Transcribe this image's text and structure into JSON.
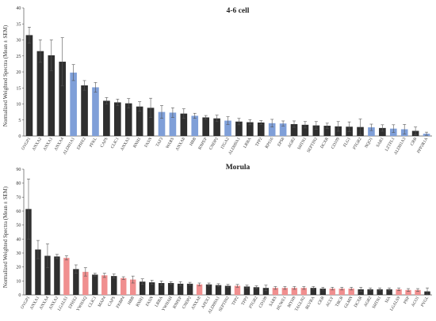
{
  "chart_data": [
    {
      "type": "bar",
      "title": "4-6 cell",
      "ylabel": "Normalized Weighted Spectra (Mean ± SEM)",
      "xlabel": "",
      "ylim": [
        0,
        40
      ],
      "yticks": [
        0,
        5,
        10,
        15,
        20,
        25,
        30,
        35,
        40
      ],
      "grid": false,
      "colors": {
        "dark": "#2f2f2f",
        "highlight": "#7f9fd8"
      },
      "categories": [
        "OVGP1",
        "ANXA2",
        "ANXA1",
        "ANXA4",
        "ALDH1A1",
        "EPHX2",
        "PFKL",
        "CAPS",
        "CLIC1",
        "ANXA5",
        "RNH1",
        "FASN",
        "TAF3",
        "WARS",
        "ANXA8",
        "HBB",
        "RNPEP",
        "CNDP2",
        "ITGA2",
        "ALDH9A1",
        "LRBA",
        "TPP2",
        "RPS16",
        "EPS8",
        "AGR2",
        "SHTN1",
        "SEPTIN2",
        "DCXR",
        "CD109",
        "FLG1",
        "PTGR2",
        "NQO1",
        "SAR1",
        "LZTFL1",
        "ALDH1A3",
        "CRB",
        "PPP2R1A"
      ],
      "values": [
        31.5,
        26.5,
        25.2,
        23.2,
        19.8,
        15.8,
        15.2,
        11.0,
        10.5,
        10.2,
        9.2,
        8.8,
        7.5,
        7.3,
        7.0,
        6.3,
        5.8,
        5.5,
        4.8,
        4.5,
        4.3,
        4.2,
        4.0,
        3.9,
        3.7,
        3.5,
        3.3,
        3.2,
        3.0,
        2.9,
        2.8,
        2.7,
        2.5,
        2.3,
        2.1,
        1.6,
        0.7
      ],
      "errors": [
        2.5,
        3.5,
        4.8,
        7.5,
        2.5,
        1.5,
        1.5,
        1.0,
        1.0,
        1.5,
        1.5,
        3.0,
        2.0,
        1.5,
        1.5,
        0.8,
        0.6,
        1.0,
        1.2,
        1.0,
        0.8,
        0.6,
        1.2,
        0.8,
        1.0,
        1.0,
        1.2,
        0.8,
        1.5,
        1.5,
        2.5,
        1.0,
        1.0,
        1.2,
        1.5,
        1.2,
        0.5
      ],
      "highlighted": [
        4,
        6,
        12,
        13,
        15,
        18,
        22,
        23,
        31,
        33,
        34,
        36
      ]
    },
    {
      "type": "bar",
      "title": "Morula",
      "ylabel": "Normalized Weighted Spectra (Mean ± SEM)",
      "xlabel": "",
      "ylim": [
        0,
        90
      ],
      "yticks": [
        0,
        10,
        20,
        30,
        40,
        50,
        60,
        70,
        80,
        90
      ],
      "grid": false,
      "colors": {
        "dark": "#2f2f2f",
        "highlight": "#f08f8f"
      },
      "categories": [
        "OVGP1",
        "ANXA1",
        "ANXA4",
        "ANXA2",
        "LGALS1",
        "EPHX2",
        "YWHAQ",
        "CLIC1",
        "MAP4",
        "CAPS",
        "FKBP4",
        "HBB",
        "RNH1",
        "FASN",
        "LRBA",
        "YWHAH",
        "RNPEP",
        "CNDP2",
        "ANXA8",
        "APEX1",
        "ALDH9A1",
        "SEPTIN2",
        "TPP2",
        "TPP3",
        "PTGR2",
        "CD109",
        "SARS",
        "HUWE1",
        "MYH9",
        "TAGLN2",
        "BLVRA",
        "CKB",
        "ACLY",
        "TBCB",
        "GLMN",
        "DCXR",
        "AGR2",
        "SHTN1",
        "SIA",
        "LGALS9",
        "PNP",
        "ACO1",
        "PYGL"
      ],
      "values": [
        61.5,
        32.5,
        28.0,
        27.5,
        26.5,
        18.5,
        16.5,
        14.5,
        14.0,
        13.5,
        12.0,
        11.0,
        9.5,
        9.0,
        8.5,
        8.5,
        8.0,
        8.0,
        7.5,
        7.5,
        7.0,
        6.5,
        6.5,
        6.0,
        5.5,
        5.0,
        5.0,
        5.0,
        5.0,
        5.0,
        5.0,
        4.5,
        4.5,
        4.5,
        4.5,
        4.0,
        4.0,
        4.0,
        4.0,
        4.0,
        3.5,
        3.5,
        2.5
      ],
      "errors": [
        21.5,
        6.5,
        8.5,
        1.5,
        1.5,
        3.0,
        3.0,
        1.0,
        1.5,
        1.5,
        1.0,
        2.5,
        2.0,
        1.5,
        1.5,
        1.0,
        1.5,
        1.0,
        1.0,
        1.0,
        1.0,
        1.0,
        1.0,
        1.0,
        1.0,
        2.0,
        1.0,
        1.0,
        1.0,
        1.0,
        1.0,
        1.0,
        1.0,
        1.0,
        1.0,
        1.5,
        1.0,
        1.0,
        1.0,
        1.0,
        1.0,
        1.0,
        2.5
      ],
      "highlighted": [
        4,
        6,
        8,
        10,
        11,
        18,
        22,
        26,
        27,
        28,
        29,
        32,
        33,
        34,
        39,
        40,
        41
      ]
    }
  ]
}
